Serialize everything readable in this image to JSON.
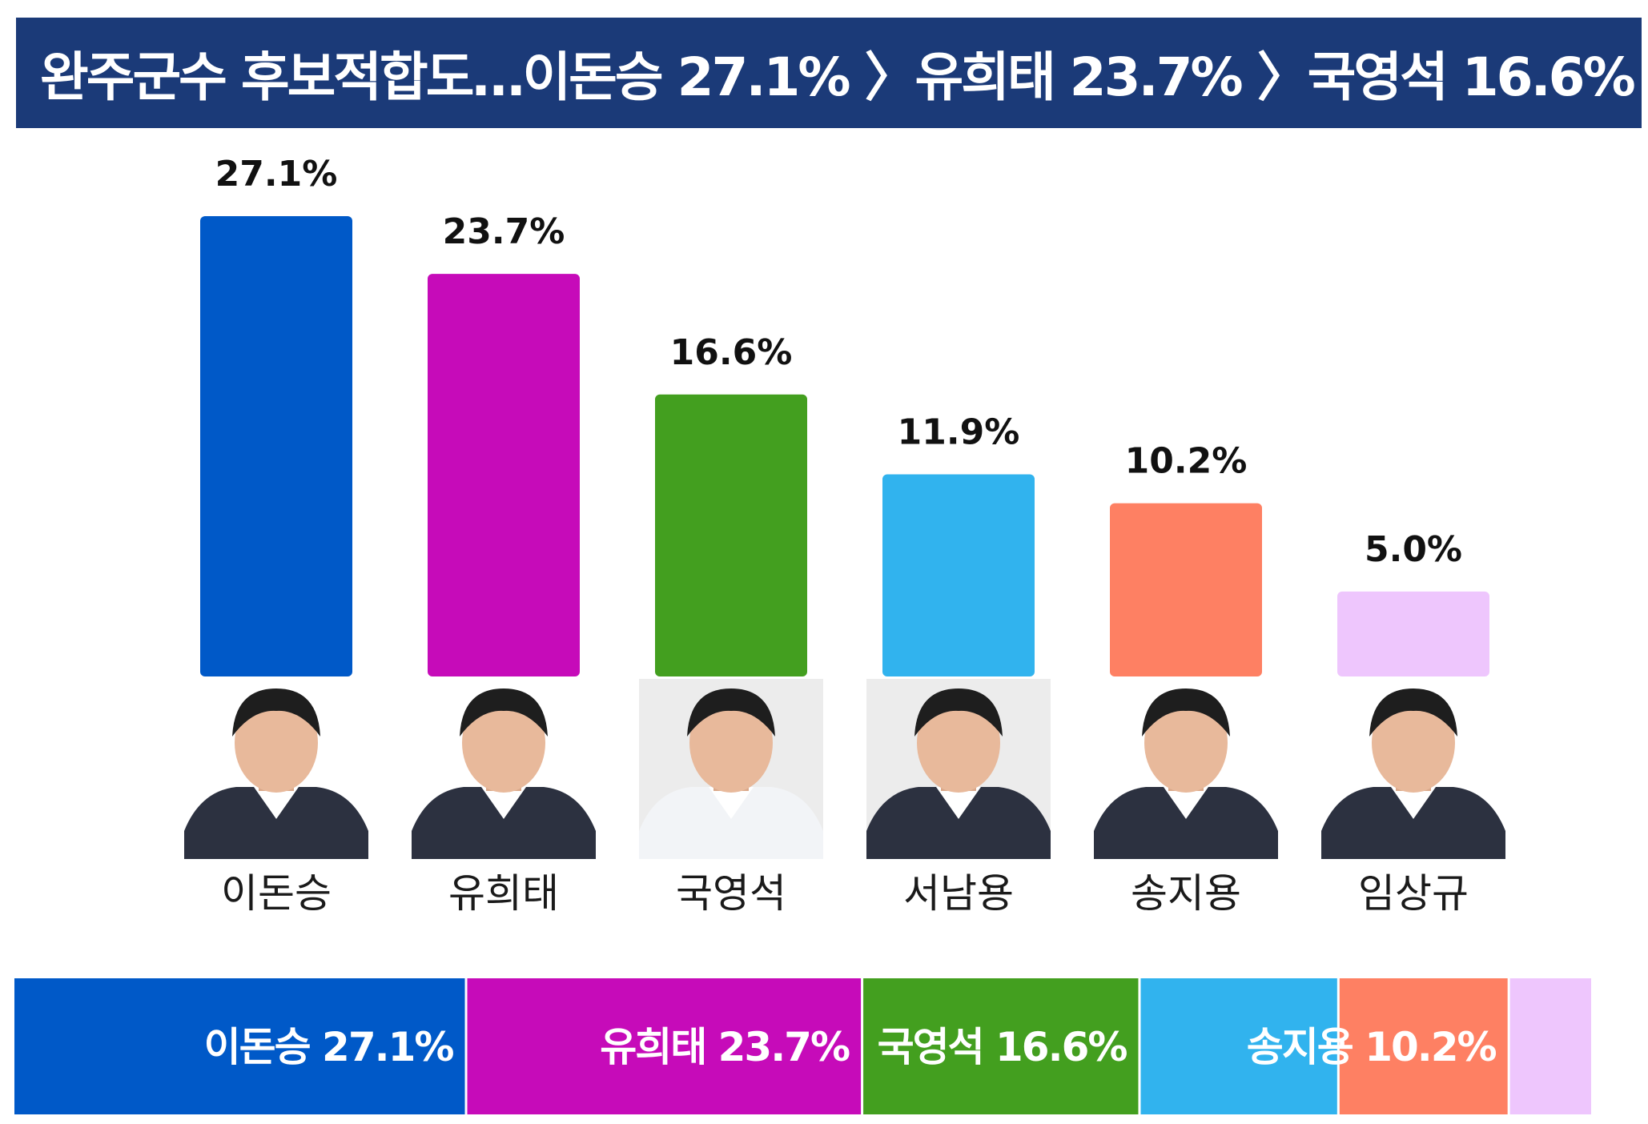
{
  "title": "완주군수 후보적합도…이돈승 27.1% 〉유희태 23.7% 〉국영석 16.6%",
  "chart_data": {
    "type": "bar",
    "categories": [
      "이돈승",
      "유희태",
      "국영석",
      "서남용",
      "송지용",
      "임상규"
    ],
    "values": [
      27.1,
      23.7,
      16.6,
      11.9,
      10.2,
      5.0
    ],
    "value_labels": [
      "27.1%",
      "23.7%",
      "16.6%",
      "11.9%",
      "10.2%",
      "5.0%"
    ],
    "colors": [
      "#0059c8",
      "#c60bb9",
      "#439f1f",
      "#31b3ee",
      "#fe8063",
      "#eec6fd"
    ],
    "photo_icons": [
      "person-photo-icon",
      "person-photo-icon",
      "person-photo-icon",
      "person-photo-icon",
      "person-photo-icon",
      "person-photo-icon"
    ],
    "ylim": [
      0,
      27.1
    ],
    "grid": false,
    "legend": "none"
  },
  "stacked_bar": {
    "segments": [
      {
        "label": "이돈승 27.1%",
        "value": 27.1,
        "color": "#0059c8"
      },
      {
        "label": "유희태 23.7%",
        "value": 23.7,
        "color": "#c60bb9"
      },
      {
        "label": "국영석 16.6%",
        "value": 16.6,
        "color": "#439f1f"
      },
      {
        "label": "",
        "value": 11.9,
        "color": "#31b3ee"
      },
      {
        "label": "송지용 10.2%",
        "value": 10.2,
        "color": "#fe8063"
      },
      {
        "label": "",
        "value": 5.0,
        "color": "#eec6fd"
      }
    ]
  }
}
